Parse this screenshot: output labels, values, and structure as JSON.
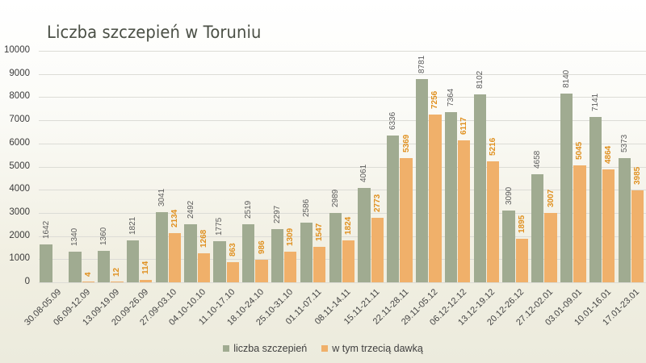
{
  "title": "Liczba szczepień w Toruniu",
  "legend": {
    "series1_label": "liczba szczepień",
    "series2_label": "w tym trzecią dawką"
  },
  "colors": {
    "series1": "#a0ab91",
    "series2": "#f0b06a",
    "series1_label": "#5b5b5b",
    "series2_label": "#e0901f"
  },
  "y_ticks": [
    "0",
    "1000",
    "2000",
    "3000",
    "4000",
    "5000",
    "6000",
    "7000",
    "8000",
    "9000",
    "10000"
  ],
  "chart_data": {
    "type": "bar",
    "title": "Liczba szczepień w Toruniu",
    "xlabel": "",
    "ylabel": "",
    "ylim": [
      0,
      10000
    ],
    "grid": true,
    "legend_position": "bottom",
    "categories": [
      "30.08-05.09",
      "06.09-12.09",
      "13.09-19.09",
      "20.09-26.09",
      "27.09-03.10",
      "04.10-10.10",
      "11.10-17.10",
      "18.10-24.10",
      "25.10-31.10",
      "01.11-07.11",
      "08.11-14.11",
      "15.11-21.11",
      "22.11-28.11",
      "29.11-05.12",
      "06.12-12.12",
      "13.12-19.12",
      "20.12-26.12",
      "27.12-02.01",
      "03.01-09.01",
      "10.01-16.01",
      "17.01-23.01"
    ],
    "series": [
      {
        "name": "liczba szczepień",
        "values": [
          1642,
          1340,
          1360,
          1821,
          3041,
          2492,
          1775,
          2519,
          2297,
          2586,
          2989,
          4061,
          6336,
          8781,
          7364,
          8102,
          3090,
          4658,
          8140,
          7141,
          5373
        ]
      },
      {
        "name": "w tym trzecią dawką",
        "values": [
          null,
          4,
          12,
          114,
          2134,
          1268,
          863,
          986,
          1309,
          1547,
          1824,
          2773,
          5369,
          7256,
          6117,
          5216,
          1895,
          3007,
          5045,
          4864,
          3985
        ]
      }
    ]
  }
}
